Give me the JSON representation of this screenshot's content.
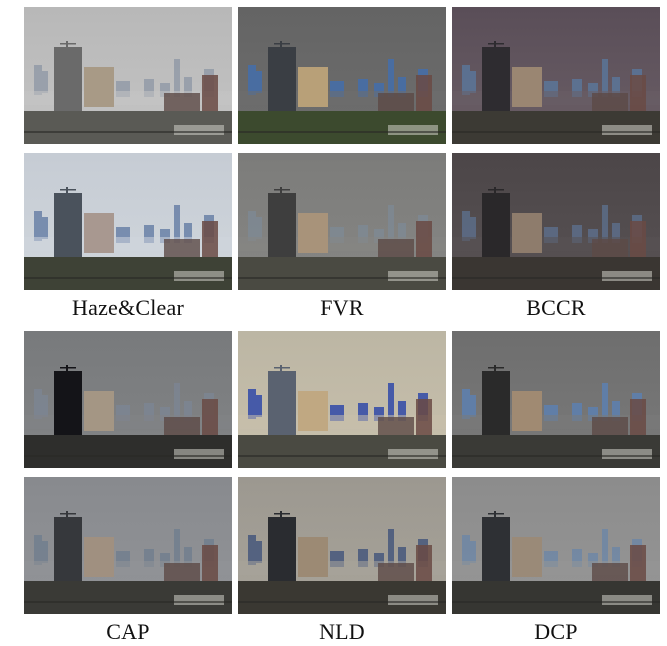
{
  "captions": {
    "col1_group1": "Haze&Clear",
    "col2_group1": "FVR",
    "col3_group1": "BCCR",
    "col1_group2": "CAP",
    "col2_group2": "NLD",
    "col3_group2": "DCP"
  },
  "panels": [
    {
      "name": "hazy-input-image",
      "sky": "#b8b8b8",
      "haze": "#c4c4c4",
      "tower": "#6a6a6a",
      "accent": "#a89a86",
      "ground": "#5a5a55",
      "blue": "#8c96a4"
    },
    {
      "name": "fvr-dehazed-image",
      "sky": "#646464",
      "haze": "#6e6e6e",
      "tower": "#3a3e44",
      "accent": "#b8a078",
      "ground": "#3c4a2e",
      "blue": "#3f6fb4"
    },
    {
      "name": "bccr-dehazed-image",
      "sky": "#5a4e58",
      "haze": "#6a5e66",
      "tower": "#2e2c30",
      "accent": "#9a8672",
      "ground": "#3c3a34",
      "blue": "#5a7aa0"
    },
    {
      "name": "clear-reference-image",
      "sky": "#c6ccd4",
      "haze": "#d0d6dc",
      "tower": "#4a525c",
      "accent": "#a89890",
      "ground": "#3e4236",
      "blue": "#5c76a0"
    },
    {
      "name": "fvr-dehazed-image-2",
      "sky": "#7c7c7a",
      "haze": "#868684",
      "tower": "#3e3e3e",
      "accent": "#a8937a",
      "ground": "#4a4a42",
      "blue": "#7e8a96"
    },
    {
      "name": "bccr-dehazed-image-2",
      "sky": "#4c4648",
      "haze": "#585254",
      "tower": "#2a282a",
      "accent": "#8e7c6c",
      "ground": "#3a3632",
      "blue": "#5e7290"
    },
    {
      "name": "cap-dehazed-image",
      "sky": "#787a7c",
      "haze": "#828486",
      "tower": "#141418",
      "accent": "#a49684",
      "ground": "#2e2e2c",
      "blue": "#7c8694"
    },
    {
      "name": "nld-dehazed-image",
      "sky": "#bcb6a4",
      "haze": "#c8c0ac",
      "tower": "#5a6270",
      "accent": "#c0a882",
      "ground": "#4a4a42",
      "blue": "#1c3aa8"
    },
    {
      "name": "dcp-dehazed-image",
      "sky": "#6e6e6e",
      "haze": "#7a7a7a",
      "tower": "#2a2a2a",
      "accent": "#a08a72",
      "ground": "#3a3a36",
      "blue": "#5a82b8"
    },
    {
      "name": "cap-dehazed-image-2",
      "sky": "#888a8e",
      "haze": "#929498",
      "tower": "#36383c",
      "accent": "#a09080",
      "ground": "#3a3a36",
      "blue": "#6e7c8e"
    },
    {
      "name": "nld-dehazed-image-2",
      "sky": "#9c9890",
      "haze": "#a8a49a",
      "tower": "#2a2c30",
      "accent": "#9c8a74",
      "ground": "#3a3832",
      "blue": "#3a4e78"
    },
    {
      "name": "dcp-dehazed-image-2",
      "sky": "#8c8c8c",
      "haze": "#969696",
      "tower": "#2e3034",
      "accent": "#9a8a78",
      "ground": "#363632",
      "blue": "#6a86a8"
    }
  ]
}
